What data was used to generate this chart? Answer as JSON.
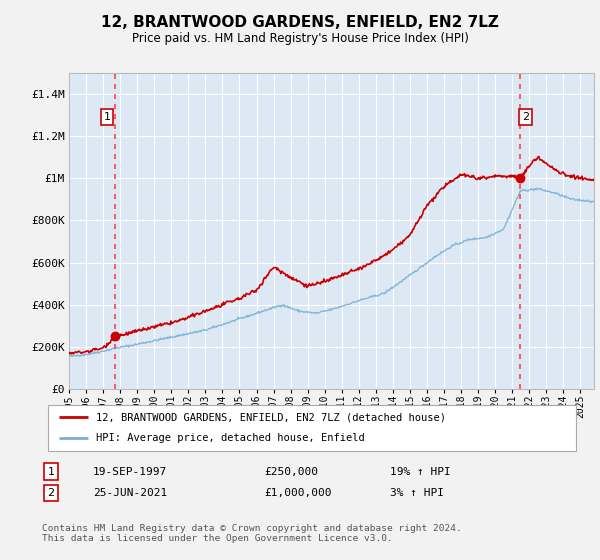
{
  "title": "12, BRANTWOOD GARDENS, ENFIELD, EN2 7LZ",
  "subtitle": "Price paid vs. HM Land Registry's House Price Index (HPI)",
  "ylim": [
    0,
    1500000
  ],
  "xlim_start": 1995.0,
  "xlim_end": 2025.8,
  "plot_bg_color": "#dce9f5",
  "grid_color": "#ffffff",
  "fig_bg_color": "#f2f2f2",
  "sale1_date": 1997.72,
  "sale1_price": 250000,
  "sale2_date": 2021.48,
  "sale2_price": 1000000,
  "sale1_date_str": "19-SEP-1997",
  "sale1_price_str": "£250,000",
  "sale1_hpi_str": "19% ↑ HPI",
  "sale2_date_str": "25-JUN-2021",
  "sale2_price_str": "£1,000,000",
  "sale2_hpi_str": "3% ↑ HPI",
  "line1_color": "#cc0000",
  "line2_color": "#7ab0d4",
  "marker_color": "#cc0000",
  "vline_color": "#ff4444",
  "box_edge_color": "#cc0000",
  "legend_label1": "12, BRANTWOOD GARDENS, ENFIELD, EN2 7LZ (detached house)",
  "legend_label2": "HPI: Average price, detached house, Enfield",
  "footer": "Contains HM Land Registry data © Crown copyright and database right 2024.\nThis data is licensed under the Open Government Licence v3.0.",
  "ytick_labels": [
    "£0",
    "£200K",
    "£400K",
    "£600K",
    "£800K",
    "£1M",
    "£1.2M",
    "£1.4M"
  ],
  "ytick_values": [
    0,
    200000,
    400000,
    600000,
    800000,
    1000000,
    1200000,
    1400000
  ],
  "xtick_years": [
    1995,
    1996,
    1997,
    1998,
    1999,
    2000,
    2001,
    2002,
    2003,
    2004,
    2005,
    2006,
    2007,
    2008,
    2009,
    2010,
    2011,
    2012,
    2013,
    2014,
    2015,
    2016,
    2017,
    2018,
    2019,
    2020,
    2021,
    2022,
    2023,
    2024,
    2025
  ]
}
